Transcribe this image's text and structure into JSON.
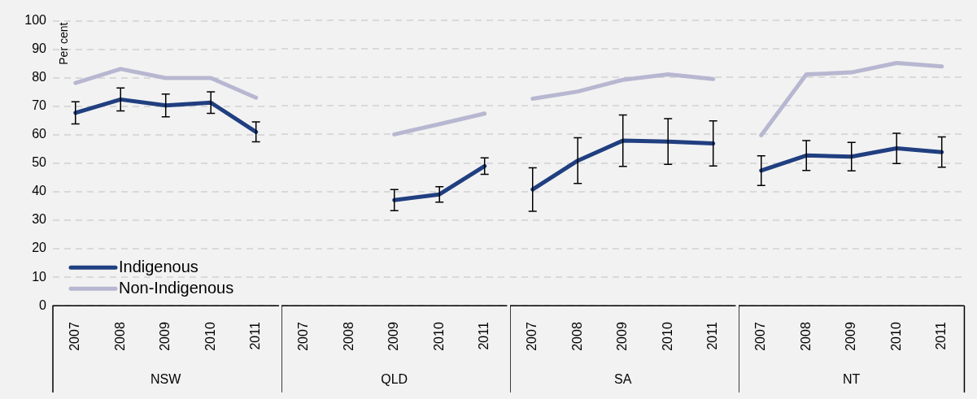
{
  "chart_data": [
    {
      "type": "line",
      "ylabel": "Per cent",
      "xlabel": "NSW",
      "categories": [
        "2007",
        "2008",
        "2009",
        "2010",
        "2011"
      ],
      "ylim": [
        0,
        100
      ],
      "yticks": [
        0,
        10,
        20,
        30,
        40,
        50,
        60,
        70,
        80,
        90,
        100
      ],
      "grid": "y",
      "legend": "bottom left",
      "series": [
        {
          "name": "Indigenous",
          "color": "#203f80",
          "values": [
            67.7,
            72.4,
            70.3,
            71.3,
            61
          ],
          "errors": [
            3.9,
            4,
            4,
            3.8,
            3.5
          ]
        },
        {
          "name": "Non-Indigenous",
          "color": "#b7b7d1",
          "values": [
            78.2,
            83.1,
            79.9,
            79.9,
            73
          ]
        }
      ]
    },
    {
      "type": "line",
      "xlabel": "QLD",
      "categories": [
        "2007",
        "2008",
        "2009",
        "2010",
        "2011"
      ],
      "ylim": [
        0,
        100
      ],
      "yticks": [
        0,
        10,
        20,
        30,
        40,
        50,
        60,
        70,
        80,
        90,
        100
      ],
      "grid": "y",
      "tick_labels": "x",
      "series": [
        {
          "color": "#203f80",
          "values": [
            null,
            null,
            37,
            39,
            48.9
          ],
          "errors": [
            null,
            null,
            3.7,
            2.7,
            2.9
          ]
        },
        {
          "color": "#b7b7d1",
          "values": [
            null,
            null,
            60,
            63.6,
            67.3
          ]
        }
      ]
    },
    {
      "type": "line",
      "xlabel": "SA",
      "categories": [
        "2007",
        "2008",
        "2009",
        "2010",
        "2011"
      ],
      "ylim": [
        0,
        100
      ],
      "yticks": [
        0,
        10,
        20,
        30,
        40,
        50,
        60,
        70,
        80,
        90,
        100
      ],
      "grid": "y",
      "tick_labels": "x",
      "series": [
        {
          "color": "#203f80",
          "values": [
            40.7,
            50.8,
            57.8,
            57.5,
            56.8
          ],
          "errors": [
            7.6,
            8,
            9,
            8,
            7.9
          ]
        },
        {
          "color": "#b7b7d1",
          "values": [
            72.5,
            75,
            79.1,
            81,
            79.4
          ]
        }
      ]
    },
    {
      "type": "line",
      "xlabel": "NT",
      "categories": [
        "2007",
        "2008",
        "2009",
        "2010",
        "2011"
      ],
      "ylim": [
        0,
        100
      ],
      "yticks": [
        0,
        10,
        20,
        30,
        40,
        50,
        60,
        70,
        80,
        90,
        100
      ],
      "grid": "y",
      "tick_labels": "x",
      "series": [
        {
          "color": "#203f80",
          "values": [
            47.3,
            52.6,
            52.2,
            55.1,
            53.8
          ],
          "errors": [
            5.2,
            5.2,
            5,
            5.3,
            5.3
          ]
        },
        {
          "color": "#b7b7d1",
          "values": [
            59.7,
            81,
            81.7,
            85,
            83.8
          ]
        }
      ]
    }
  ]
}
